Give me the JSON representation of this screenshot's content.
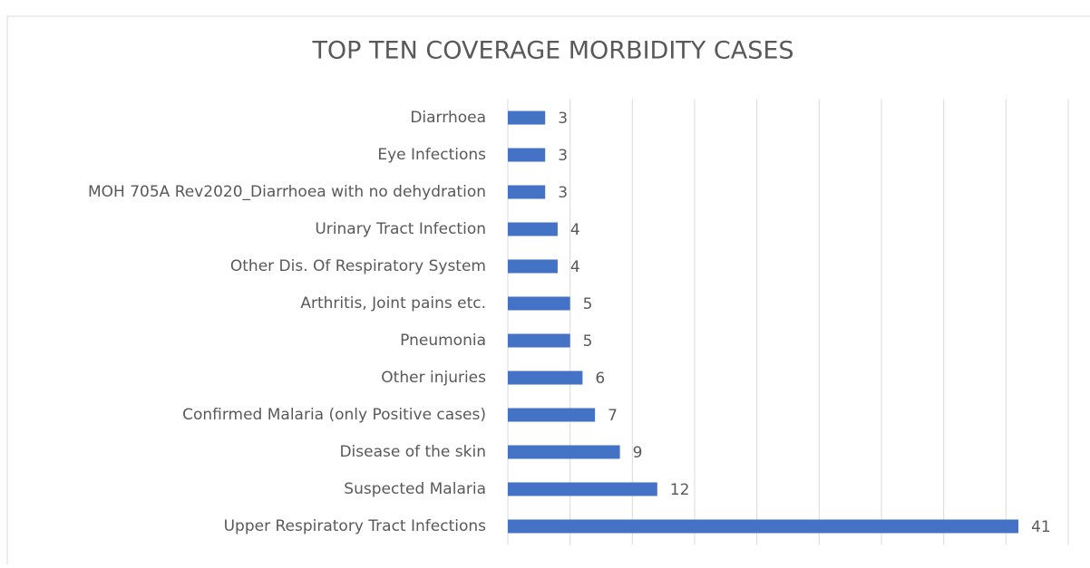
{
  "chart_data": {
    "type": "bar",
    "orientation": "horizontal",
    "title": "TOP TEN COVERAGE MORBIDITY CASES",
    "categories": [
      "Diarrhoea",
      "Eye Infections",
      "MOH 705A Rev2020_Diarrhoea with no dehydration",
      "Urinary Tract Infection",
      "Other  Dis. Of  Respiratory System",
      "Arthritis, Joint pains etc.",
      "Pneumonia",
      "Other injuries",
      "Confirmed Malaria (only Positive cases)",
      "Disease of the skin",
      "Suspected  Malaria",
      "Upper Respiratory Tract Infections"
    ],
    "values": [
      3,
      3,
      3,
      4,
      4,
      5,
      5,
      6,
      7,
      9,
      12,
      41
    ],
    "color": "#4472c4",
    "xlim": [
      0,
      45
    ],
    "xticks": [
      0,
      5,
      10,
      15,
      20,
      25,
      30,
      35,
      40,
      45
    ],
    "grid": true
  }
}
